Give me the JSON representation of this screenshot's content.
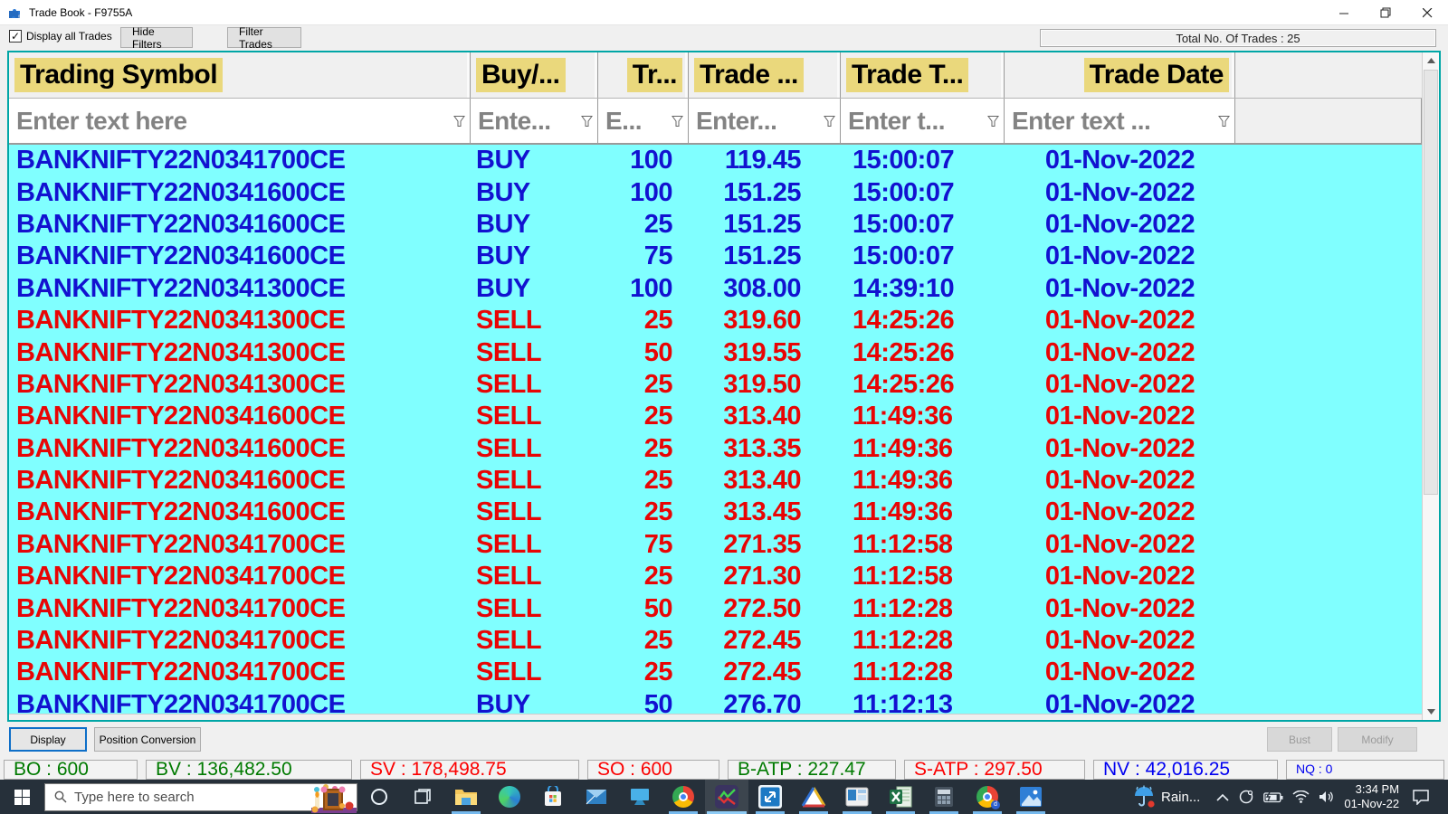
{
  "window": {
    "title": "Trade Book - F9755A"
  },
  "toolbar": {
    "display_all_trades_label": "Display all Trades",
    "display_all_trades_checked": "✓",
    "hide_filters_label": "Hide Filters",
    "filter_trades_label": "Filter Trades",
    "total_trades_label": "Total No. Of Trades : 25"
  },
  "grid": {
    "columns": [
      {
        "label": "Trading Symbol",
        "filter_placeholder": "Enter text here",
        "align": "left"
      },
      {
        "label": "Buy/...",
        "filter_placeholder": "Ente...",
        "align": "left"
      },
      {
        "label": "Tr...",
        "filter_placeholder": "E...",
        "align": "right"
      },
      {
        "label": "Trade ...",
        "filter_placeholder": "Enter...",
        "align": "left"
      },
      {
        "label": "Trade T...",
        "filter_placeholder": "Enter t...",
        "align": "left"
      },
      {
        "label": "Trade Date",
        "filter_placeholder": "Enter text ...",
        "align": "right"
      }
    ],
    "rows": [
      {
        "symbol": "BANKNIFTY22N0341700CE",
        "side": "BUY",
        "qty": "100",
        "price": "119.45",
        "time": "15:00:07",
        "date": "01-Nov-2022"
      },
      {
        "symbol": "BANKNIFTY22N0341600CE",
        "side": "BUY",
        "qty": "100",
        "price": "151.25",
        "time": "15:00:07",
        "date": "01-Nov-2022"
      },
      {
        "symbol": "BANKNIFTY22N0341600CE",
        "side": "BUY",
        "qty": "25",
        "price": "151.25",
        "time": "15:00:07",
        "date": "01-Nov-2022"
      },
      {
        "symbol": "BANKNIFTY22N0341600CE",
        "side": "BUY",
        "qty": "75",
        "price": "151.25",
        "time": "15:00:07",
        "date": "01-Nov-2022"
      },
      {
        "symbol": "BANKNIFTY22N0341300CE",
        "side": "BUY",
        "qty": "100",
        "price": "308.00",
        "time": "14:39:10",
        "date": "01-Nov-2022"
      },
      {
        "symbol": "BANKNIFTY22N0341300CE",
        "side": "SELL",
        "qty": "25",
        "price": "319.60",
        "time": "14:25:26",
        "date": "01-Nov-2022"
      },
      {
        "symbol": "BANKNIFTY22N0341300CE",
        "side": "SELL",
        "qty": "50",
        "price": "319.55",
        "time": "14:25:26",
        "date": "01-Nov-2022"
      },
      {
        "symbol": "BANKNIFTY22N0341300CE",
        "side": "SELL",
        "qty": "25",
        "price": "319.50",
        "time": "14:25:26",
        "date": "01-Nov-2022"
      },
      {
        "symbol": "BANKNIFTY22N0341600CE",
        "side": "SELL",
        "qty": "25",
        "price": "313.40",
        "time": "11:49:36",
        "date": "01-Nov-2022"
      },
      {
        "symbol": "BANKNIFTY22N0341600CE",
        "side": "SELL",
        "qty": "25",
        "price": "313.35",
        "time": "11:49:36",
        "date": "01-Nov-2022"
      },
      {
        "symbol": "BANKNIFTY22N0341600CE",
        "side": "SELL",
        "qty": "25",
        "price": "313.40",
        "time": "11:49:36",
        "date": "01-Nov-2022"
      },
      {
        "symbol": "BANKNIFTY22N0341600CE",
        "side": "SELL",
        "qty": "25",
        "price": "313.45",
        "time": "11:49:36",
        "date": "01-Nov-2022"
      },
      {
        "symbol": "BANKNIFTY22N0341700CE",
        "side": "SELL",
        "qty": "75",
        "price": "271.35",
        "time": "11:12:58",
        "date": "01-Nov-2022"
      },
      {
        "symbol": "BANKNIFTY22N0341700CE",
        "side": "SELL",
        "qty": "25",
        "price": "271.30",
        "time": "11:12:58",
        "date": "01-Nov-2022"
      },
      {
        "symbol": "BANKNIFTY22N0341700CE",
        "side": "SELL",
        "qty": "50",
        "price": "272.50",
        "time": "11:12:28",
        "date": "01-Nov-2022"
      },
      {
        "symbol": "BANKNIFTY22N0341700CE",
        "side": "SELL",
        "qty": "25",
        "price": "272.45",
        "time": "11:12:28",
        "date": "01-Nov-2022"
      },
      {
        "symbol": "BANKNIFTY22N0341700CE",
        "side": "SELL",
        "qty": "25",
        "price": "272.45",
        "time": "11:12:28",
        "date": "01-Nov-2022"
      },
      {
        "symbol": "BANKNIFTY22N0341700CE",
        "side": "BUY",
        "qty": "50",
        "price": "276.70",
        "time": "11:12:13",
        "date": "01-Nov-2022"
      }
    ],
    "colors": {
      "buy": "#1212d0",
      "sell": "#e80505",
      "row_background": "#80ffff",
      "header_highlight": "#ead87c"
    }
  },
  "footer": {
    "display_label": "Display",
    "position_conversion_label": "Position Conversion",
    "bust_label": "Bust",
    "modify_label": "Modify"
  },
  "status_segments": [
    {
      "label": "BO : 600",
      "color": "#007a00"
    },
    {
      "label": "BV : 136,482.50",
      "color": "#007a00"
    },
    {
      "label": "SV : 178,498.75",
      "color": "#fb0000"
    },
    {
      "label": "SO : 600",
      "color": "#fb0000"
    },
    {
      "label": "B-ATP : 227.47",
      "color": "#007a00"
    },
    {
      "label": "S-ATP : 297.50",
      "color": "#fb0000"
    },
    {
      "label": "NV : 42,016.25",
      "color": "#0000f0"
    },
    {
      "label": "NQ : 0",
      "color": "#0000f0",
      "small": true
    }
  ],
  "taskbar": {
    "search_placeholder": "Type here to search",
    "weather_label": "Rain...",
    "time": "3:34 PM",
    "date": "01-Nov-22"
  }
}
